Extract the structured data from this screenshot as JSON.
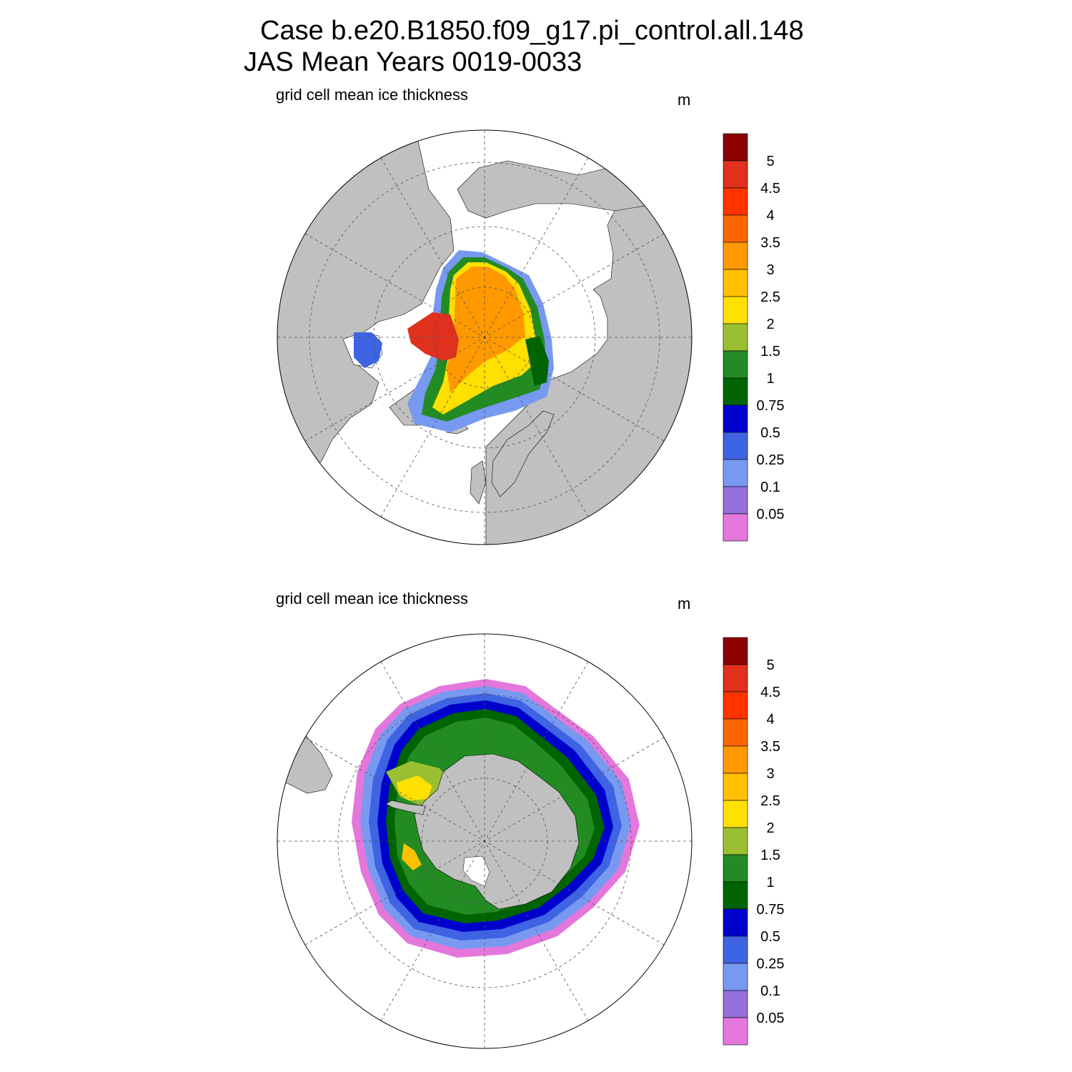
{
  "title": {
    "line1": "Case b.e20.B1850.f09_g17.pi_control.all.148",
    "line2": "JAS Mean   Years 0019-0033"
  },
  "panels": [
    {
      "id": "nh",
      "variable": "grid cell mean ice thickness",
      "unit": "m",
      "hemisphere": "north"
    },
    {
      "id": "sh",
      "variable": "grid cell mean ice thickness",
      "unit": "m",
      "hemisphere": "south"
    }
  ],
  "colorbar": {
    "levels": [
      "5",
      "4.5",
      "4",
      "3.5",
      "3",
      "2.5",
      "2",
      "1.5",
      "1",
      "0.75",
      "0.5",
      "0.25",
      "0.1",
      "0.05"
    ],
    "colors": [
      "#8b0000",
      "#e0301e",
      "#ff3300",
      "#ff6600",
      "#ff9900",
      "#ffc000",
      "#ffe000",
      "#9ac031",
      "#228b22",
      "#006400",
      "#0000cd",
      "#3e63e3",
      "#7799f0",
      "#9370db",
      "#e477dc"
    ]
  },
  "map_colors": {
    "land": "#c0c0c0",
    "ocean": "#ffffff",
    "grid": "#555555"
  }
}
